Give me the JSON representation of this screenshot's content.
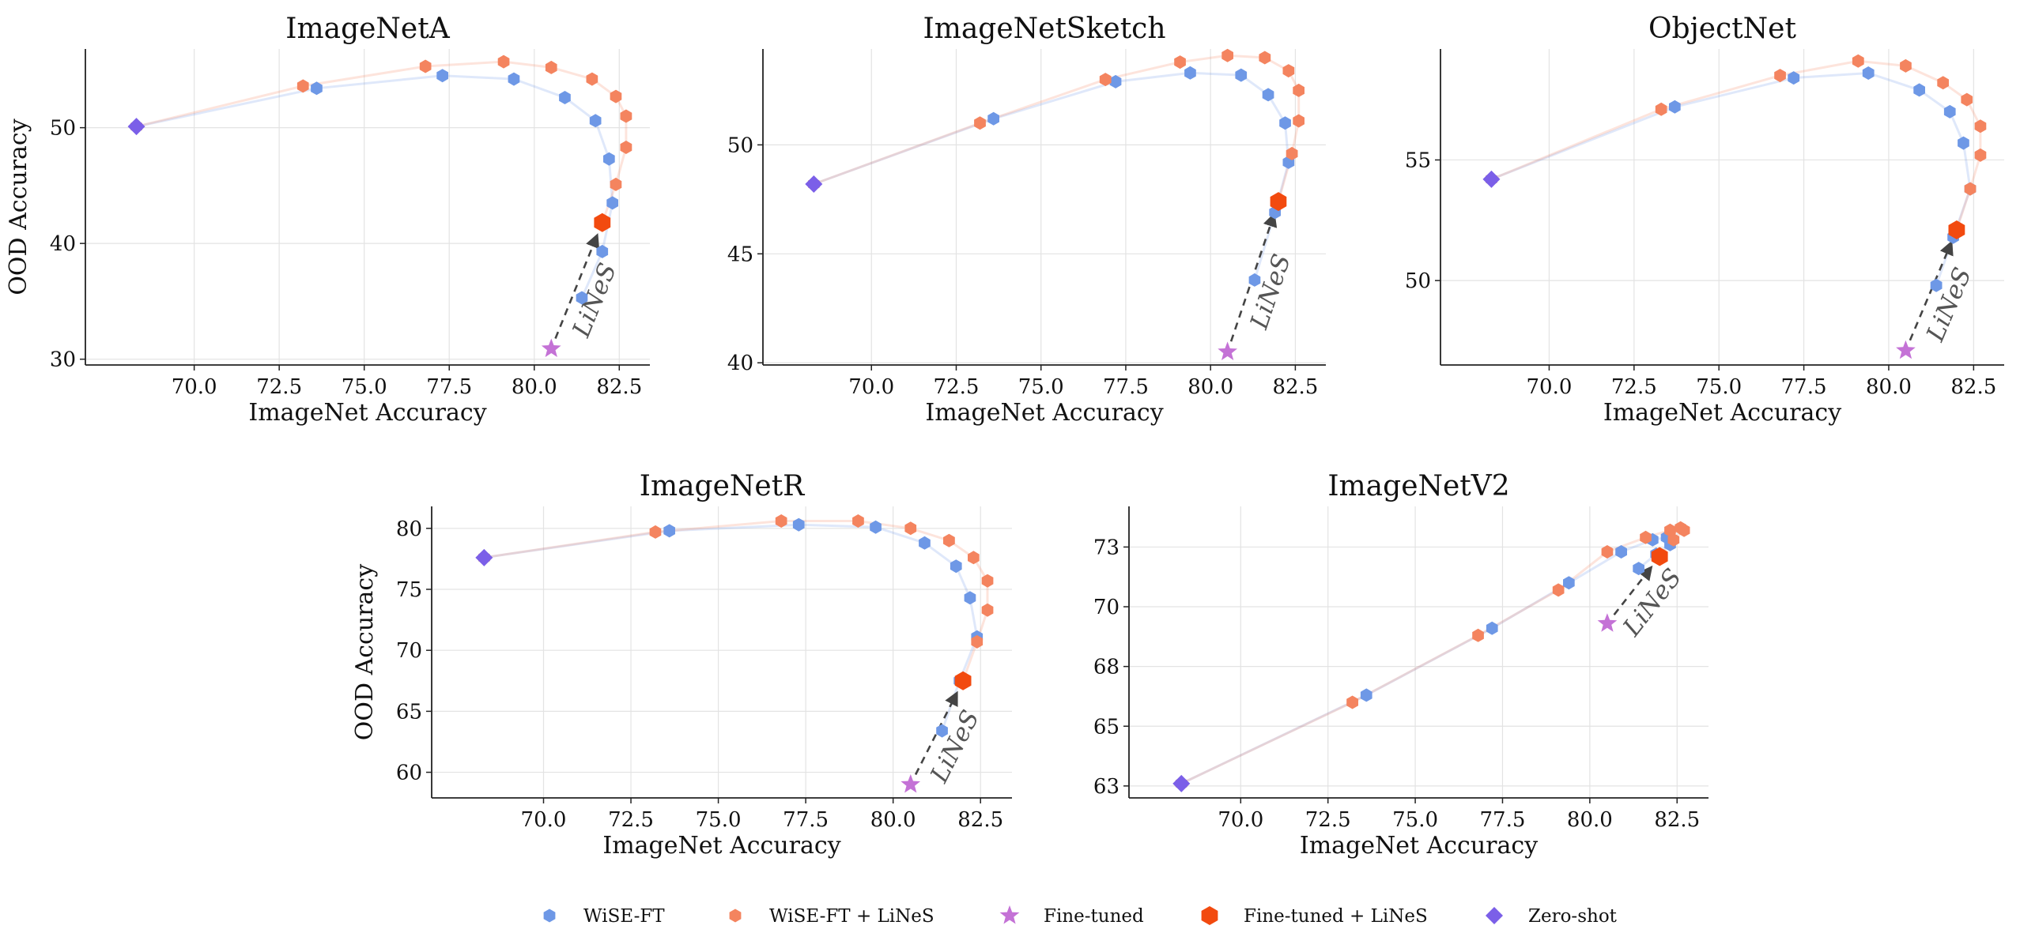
{
  "legend": [
    {
      "key": "wise",
      "label": "WiSE-FT",
      "marker": "hexagon-small",
      "color": "#6e98e6"
    },
    {
      "key": "wiselines",
      "label": "WiSE-FT + LiNeS",
      "marker": "hexagon-small",
      "color": "#f4845f"
    },
    {
      "key": "ft",
      "label": "Fine-tuned",
      "marker": "star",
      "color": "#c472d6"
    },
    {
      "key": "ftlines",
      "label": "Fine-tuned + LiNeS",
      "marker": "hexagon-large",
      "color": "#f24a0f"
    },
    {
      "key": "zs",
      "label": "Zero-shot",
      "marker": "diamond",
      "color": "#7b5fe8"
    }
  ],
  "chart_data": [
    {
      "type": "scatter",
      "title": "ImageNetA",
      "xlabel": "ImageNet Accuracy",
      "ylabel": "OOD Accuracy",
      "xlim": [
        66.8,
        83.4
      ],
      "ylim": [
        29.5,
        56.8
      ],
      "xticks": [
        "70.0",
        "72.5",
        "75.0",
        "77.5",
        "80.0",
        "82.5"
      ],
      "yticks": [
        "30",
        "40",
        "50"
      ],
      "grid": true,
      "annotation": "LiNeS",
      "series": {
        "wise": {
          "x": [
            68.3,
            73.6,
            77.3,
            79.4,
            80.9,
            81.8,
            82.2,
            82.3,
            82.0,
            81.4
          ],
          "y": [
            50.1,
            53.4,
            54.5,
            54.2,
            52.6,
            50.6,
            47.3,
            43.5,
            39.3,
            35.3
          ]
        },
        "wiselines": {
          "x": [
            68.3,
            73.2,
            76.8,
            79.1,
            80.5,
            81.7,
            82.4,
            82.7,
            82.7,
            82.4,
            82.0
          ],
          "y": [
            50.1,
            53.6,
            55.3,
            55.7,
            55.2,
            54.2,
            52.7,
            51.0,
            48.3,
            45.1,
            41.8
          ]
        },
        "ft": {
          "x": [
            80.5
          ],
          "y": [
            30.9
          ]
        },
        "ftlines": {
          "x": [
            82.0
          ],
          "y": [
            41.8
          ]
        },
        "zs": {
          "x": [
            68.3
          ],
          "y": [
            50.1
          ]
        }
      }
    },
    {
      "type": "scatter",
      "title": "ImageNetSketch",
      "xlabel": "ImageNet Accuracy",
      "ylabel": "",
      "xlim": [
        66.8,
        83.4
      ],
      "ylim": [
        39.9,
        54.4
      ],
      "xticks": [
        "70.0",
        "72.5",
        "75.0",
        "77.5",
        "80.0",
        "82.5"
      ],
      "yticks": [
        "40",
        "45",
        "50"
      ],
      "grid": true,
      "annotation": "LiNeS",
      "series": {
        "wise": {
          "x": [
            68.3,
            73.6,
            77.2,
            79.4,
            80.9,
            81.7,
            82.2,
            82.3,
            81.9,
            81.3
          ],
          "y": [
            48.2,
            51.2,
            52.9,
            53.3,
            53.2,
            52.3,
            51.0,
            49.2,
            46.9,
            43.8
          ]
        },
        "wiselines": {
          "x": [
            68.3,
            73.2,
            76.9,
            79.1,
            80.5,
            81.6,
            82.3,
            82.6,
            82.6,
            82.4,
            82.0
          ],
          "y": [
            48.2,
            51.0,
            53.0,
            53.8,
            54.1,
            54.0,
            53.4,
            52.5,
            51.1,
            49.6,
            47.4
          ]
        },
        "ft": {
          "x": [
            80.5
          ],
          "y": [
            40.5
          ]
        },
        "ftlines": {
          "x": [
            82.0
          ],
          "y": [
            47.4
          ]
        },
        "zs": {
          "x": [
            68.3
          ],
          "y": [
            48.2
          ]
        }
      }
    },
    {
      "type": "scatter",
      "title": "ObjectNet",
      "xlabel": "ImageNet Accuracy",
      "ylabel": "",
      "xlim": [
        66.8,
        83.4
      ],
      "ylim": [
        46.5,
        59.6
      ],
      "xticks": [
        "70.0",
        "72.5",
        "75.0",
        "77.5",
        "80.0",
        "82.5"
      ],
      "yticks": [
        "50",
        "55"
      ],
      "grid": true,
      "annotation": "LiNeS",
      "series": {
        "wise": {
          "x": [
            68.3,
            73.7,
            77.2,
            79.4,
            80.9,
            81.8,
            82.2,
            82.4,
            81.9,
            81.4
          ],
          "y": [
            54.2,
            57.2,
            58.4,
            58.6,
            57.9,
            57.0,
            55.7,
            53.8,
            51.8,
            49.8
          ]
        },
        "wiselines": {
          "x": [
            68.3,
            73.3,
            76.8,
            79.1,
            80.5,
            81.6,
            82.3,
            82.7,
            82.7,
            82.4,
            82.0
          ],
          "y": [
            54.2,
            57.1,
            58.5,
            59.1,
            58.9,
            58.2,
            57.5,
            56.4,
            55.2,
            53.8,
            52.1
          ]
        },
        "ft": {
          "x": [
            80.5
          ],
          "y": [
            47.1
          ]
        },
        "ftlines": {
          "x": [
            82.0
          ],
          "y": [
            52.1
          ]
        },
        "zs": {
          "x": [
            68.3
          ],
          "y": [
            54.2
          ]
        }
      }
    },
    {
      "type": "scatter",
      "title": "ImageNetR",
      "xlabel": "ImageNet Accuracy",
      "ylabel": "OOD Accuracy",
      "xlim": [
        66.8,
        83.4
      ],
      "ylim": [
        57.9,
        81.8
      ],
      "xticks": [
        "70.0",
        "72.5",
        "75.0",
        "77.5",
        "80.0",
        "82.5"
      ],
      "yticks": [
        "60",
        "65",
        "70",
        "75",
        "80"
      ],
      "grid": true,
      "annotation": "LiNeS",
      "series": {
        "wise": {
          "x": [
            68.3,
            73.6,
            77.3,
            79.5,
            80.9,
            81.8,
            82.2,
            82.4,
            81.9,
            81.4
          ],
          "y": [
            77.6,
            79.8,
            80.3,
            80.1,
            78.8,
            76.9,
            74.3,
            71.1,
            67.5,
            63.4
          ]
        },
        "wiselines": {
          "x": [
            68.3,
            73.2,
            76.8,
            79.0,
            80.5,
            81.6,
            82.3,
            82.7,
            82.7,
            82.4,
            82.0
          ],
          "y": [
            77.6,
            79.7,
            80.6,
            80.6,
            80.0,
            79.0,
            77.6,
            75.7,
            73.3,
            70.7,
            67.5
          ]
        },
        "ft": {
          "x": [
            80.5
          ],
          "y": [
            59.0
          ]
        },
        "ftlines": {
          "x": [
            82.0
          ],
          "y": [
            67.5
          ]
        },
        "zs": {
          "x": [
            68.3
          ],
          "y": [
            77.6
          ]
        }
      }
    },
    {
      "type": "scatter",
      "title": "ImageNetV2",
      "xlabel": "ImageNet Accuracy",
      "ylabel": "",
      "xlim": [
        66.8,
        83.4
      ],
      "ylim": [
        62.0,
        74.2
      ],
      "xticks": [
        "70.0",
        "72.5",
        "75.0",
        "77.5",
        "80.0",
        "82.5"
      ],
      "yticks": [
        "63",
        "65",
        "68",
        "70",
        "73"
      ],
      "ytick_values": [
        62.5,
        65.0,
        67.5,
        70.0,
        72.5
      ],
      "grid": true,
      "annotation": "LiNeS",
      "series": {
        "wise": {
          "x": [
            68.3,
            73.6,
            77.2,
            79.4,
            80.9,
            81.8,
            82.2,
            82.3,
            81.9,
            81.4
          ],
          "y": [
            62.6,
            66.3,
            69.1,
            71.0,
            72.3,
            72.8,
            72.9,
            72.6,
            72.2,
            71.6
          ]
        },
        "wiselines": {
          "x": [
            68.3,
            73.2,
            76.8,
            79.1,
            80.5,
            81.6,
            82.3,
            82.6,
            82.7,
            82.4,
            82.0
          ],
          "y": [
            62.6,
            66.0,
            68.8,
            70.7,
            72.3,
            72.9,
            73.2,
            73.3,
            73.2,
            72.8,
            72.1
          ]
        },
        "ft": {
          "x": [
            80.5
          ],
          "y": [
            69.3
          ]
        },
        "ftlines": {
          "x": [
            82.0
          ],
          "y": [
            72.1
          ]
        },
        "zs": {
          "x": [
            68.3
          ],
          "y": [
            62.6
          ]
        }
      }
    }
  ]
}
